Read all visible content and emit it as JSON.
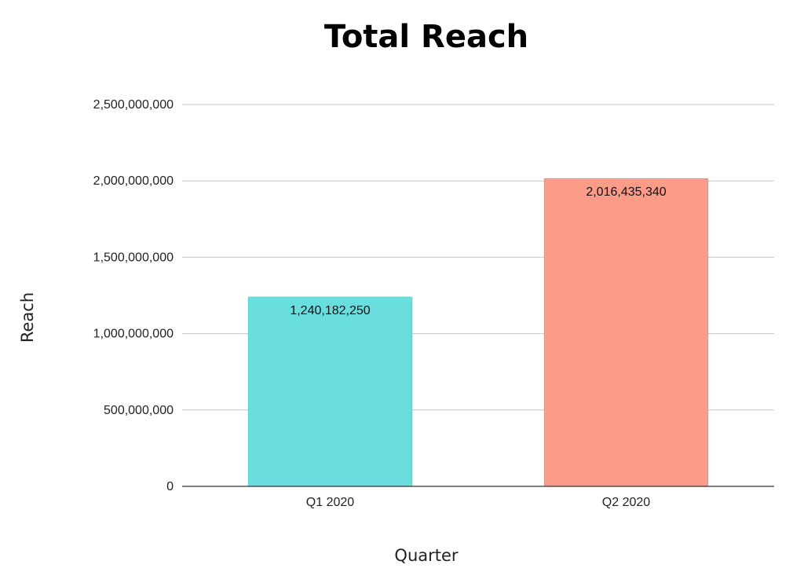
{
  "chart_data": {
    "type": "bar",
    "title": "Total Reach",
    "xlabel": "Quarter",
    "ylabel": "Reach",
    "categories": [
      "Q1 2020",
      "Q2 2020"
    ],
    "values": [
      1240182250,
      2016435340
    ],
    "data_labels": [
      "1,240,182,250",
      "2,016,435,340"
    ],
    "colors": [
      "#6ADEDF",
      "#FC9C88"
    ],
    "ylim": [
      0,
      2500000000
    ],
    "yticks": [
      0,
      500000000,
      1000000000,
      1500000000,
      2000000000,
      2500000000
    ],
    "ytick_labels": [
      "0",
      "500,000,000",
      "1,000,000,000",
      "1,500,000,000",
      "2,000,000,000",
      "2,500,000,000"
    ],
    "grid": true,
    "legend": "none"
  }
}
